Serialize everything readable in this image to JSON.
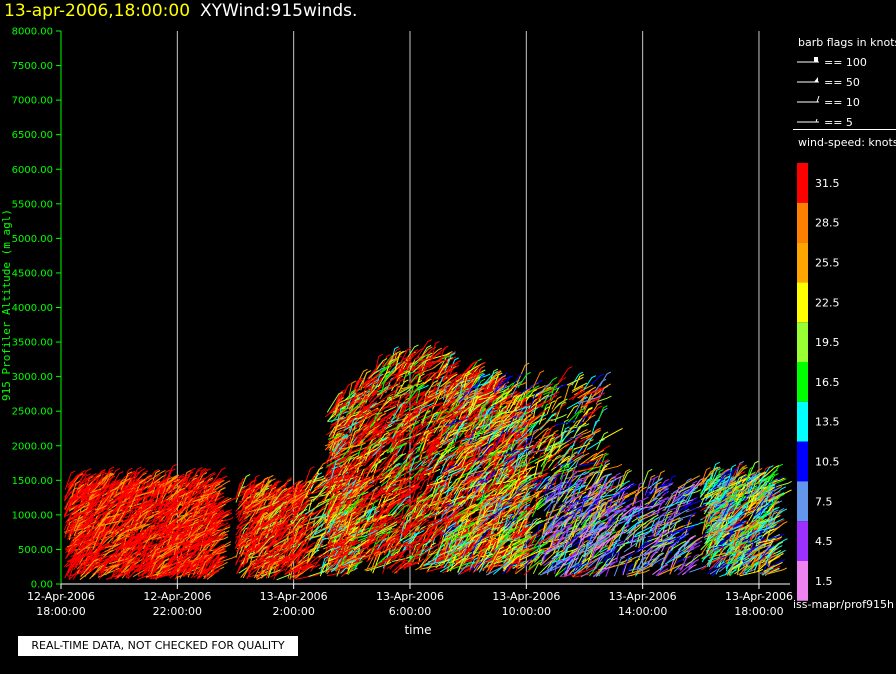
{
  "header": {
    "date": "13-apr-2006,18:00:00",
    "name": "XYWind:915winds."
  },
  "chart_data": {
    "type": "scatter",
    "title": "13-apr-2006,18:00:00  XYWind:915winds.",
    "xlabel": "time",
    "ylabel": "915 Profiler Altitude (m agl)",
    "ylim": [
      0,
      8000
    ],
    "y_ticks": [
      "0.00",
      "500.00",
      "1000.00",
      "1500.00",
      "2000.00",
      "2500.00",
      "3000.00",
      "3500.00",
      "4000.00",
      "4500.00",
      "5000.00",
      "5500.00",
      "6000.00",
      "6500.00",
      "7000.00",
      "7500.00",
      "8000.00"
    ],
    "x_ticks": [
      {
        "date": "12-Apr-2006",
        "time": "18:00:00"
      },
      {
        "date": "12-Apr-2006",
        "time": "22:00:00"
      },
      {
        "date": "13-Apr-2006",
        "time": "2:00:00"
      },
      {
        "date": "13-Apr-2006",
        "time": "6:00:00"
      },
      {
        "date": "13-Apr-2006",
        "time": "10:00:00"
      },
      {
        "date": "13-Apr-2006",
        "time": "14:00:00"
      },
      {
        "date": "13-Apr-2006",
        "time": "18:00:00"
      }
    ],
    "grid": true,
    "colors": {
      "axis": "#00ff00",
      "grid": "#c8c8c8"
    }
  },
  "barb_legend": {
    "title": "barb flags in knots",
    "items": [
      "== 100",
      "== 50",
      "== 10",
      "== 5"
    ]
  },
  "colorbar": {
    "title": "wind-speed: knots",
    "labels": [
      "31.5",
      "28.5",
      "25.5",
      "22.5",
      "19.5",
      "16.5",
      "13.5",
      "10.5",
      "7.5",
      "4.5",
      "1.5"
    ],
    "colors": [
      "#ff0000",
      "#ff7f00",
      "#ffa500",
      "#ffff00",
      "#9aff32",
      "#00ff00",
      "#00ffff",
      "#0000ff",
      "#6495ed",
      "#9b30ff",
      "#ee82ee"
    ]
  },
  "source": "iss-mapr/prof915h",
  "quality_notice": "REAL-TIME DATA, NOT CHECKED FOR QUALITY"
}
